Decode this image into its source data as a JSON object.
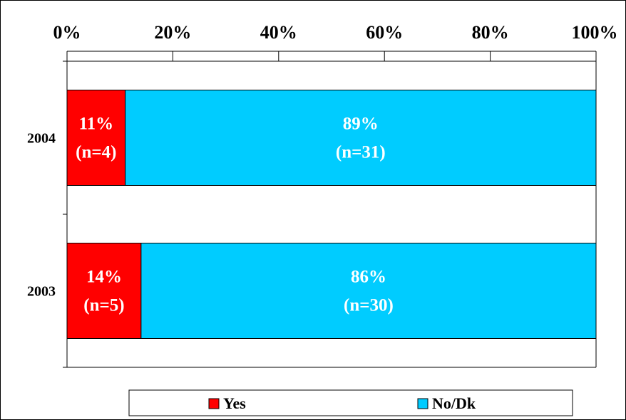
{
  "chart_data": {
    "type": "bar",
    "orientation": "horizontal",
    "stacked": true,
    "percent": true,
    "categories": [
      "2004",
      "2003"
    ],
    "series": [
      {
        "name": "Yes",
        "color": "#ff0000",
        "values": [
          11,
          14
        ],
        "labels": [
          [
            "11%",
            "(n=4)"
          ],
          [
            "14%",
            "(n=5)"
          ]
        ]
      },
      {
        "name": "No/Dk",
        "color": "#00ccff",
        "values": [
          89,
          86
        ],
        "labels": [
          [
            "89%",
            "(n=31)"
          ],
          [
            "86%",
            "(n=30)"
          ]
        ]
      }
    ],
    "x_ticks": [
      "0%",
      "20%",
      "40%",
      "60%",
      "80%",
      "100%"
    ],
    "xlim": [
      0,
      100
    ],
    "x_axis_position": "top",
    "grid": false,
    "legend": "bottom"
  }
}
